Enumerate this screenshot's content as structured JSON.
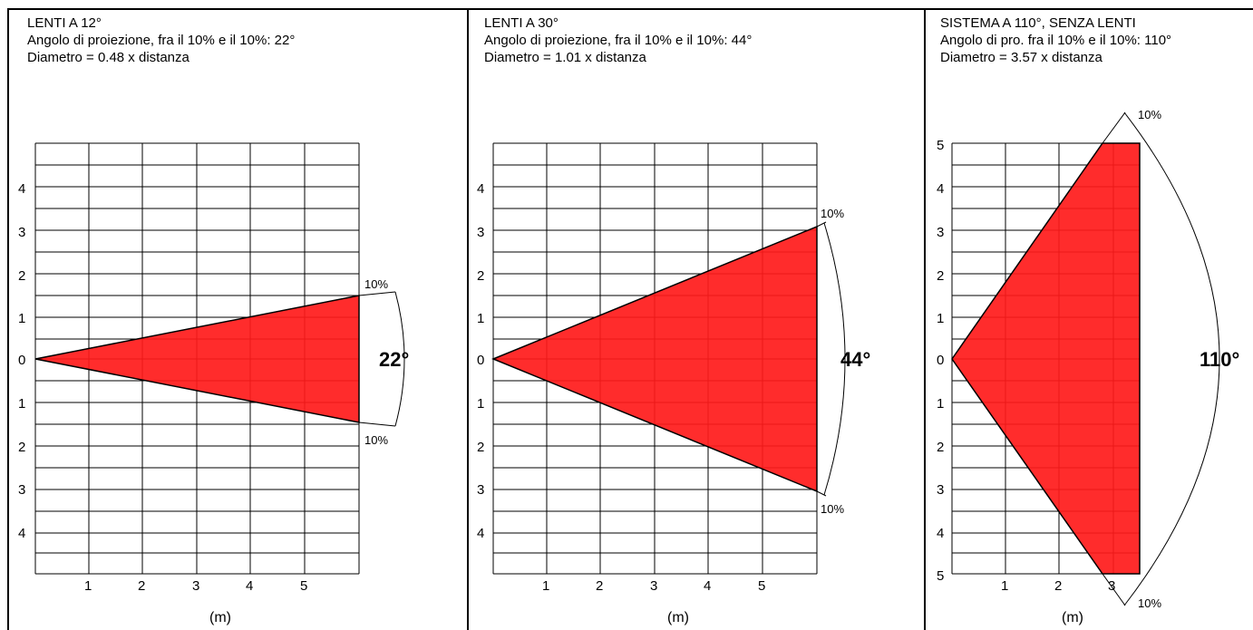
{
  "colors": {
    "beam": "#ff1a1a",
    "line": "#000000",
    "background": "#ffffff"
  },
  "panels": [
    {
      "title": "LENTI A 12°",
      "line2": "Angolo di proiezione, fra il 10% e il 10%: 22°",
      "line3": "Diametro = 0.48 x distanza",
      "angle_label": "22°",
      "edge_label_top": "10%",
      "edge_label_bottom": "10%",
      "unit_label": "(m)",
      "x_ticks": [
        "1",
        "2",
        "3",
        "4",
        "5"
      ],
      "y_ticks": [
        "4",
        "3",
        "2",
        "1",
        "0",
        "1",
        "2",
        "3",
        "4"
      ],
      "diameter_factor": 0.48,
      "beam_angle_deg": 22
    },
    {
      "title": "LENTI A 30°",
      "line2": "Angolo di proiezione, fra il 10% e il 10%: 44°",
      "line3": "Diametro = 1.01 x distanza",
      "angle_label": "44°",
      "edge_label_top": "10%",
      "edge_label_bottom": "10%",
      "unit_label": "(m)",
      "x_ticks": [
        "1",
        "2",
        "3",
        "4",
        "5"
      ],
      "y_ticks": [
        "4",
        "3",
        "2",
        "1",
        "0",
        "1",
        "2",
        "3",
        "4"
      ],
      "diameter_factor": 1.01,
      "beam_angle_deg": 44
    },
    {
      "title": "SISTEMA A 110°, SENZA LENTI",
      "line2": "Angolo di pro. fra il 10% e il 10%: 110°",
      "line3": "Diametro = 3.57 x distanza",
      "angle_label": "110°",
      "edge_label_top": "10%",
      "edge_label_bottom": "10%",
      "unit_label": "(m)",
      "x_ticks": [
        "1",
        "2",
        "3"
      ],
      "y_ticks": [
        "5",
        "4",
        "3",
        "2",
        "1",
        "0",
        "1",
        "2",
        "3",
        "4",
        "5"
      ],
      "diameter_factor": 3.57,
      "beam_angle_deg": 110
    }
  ]
}
